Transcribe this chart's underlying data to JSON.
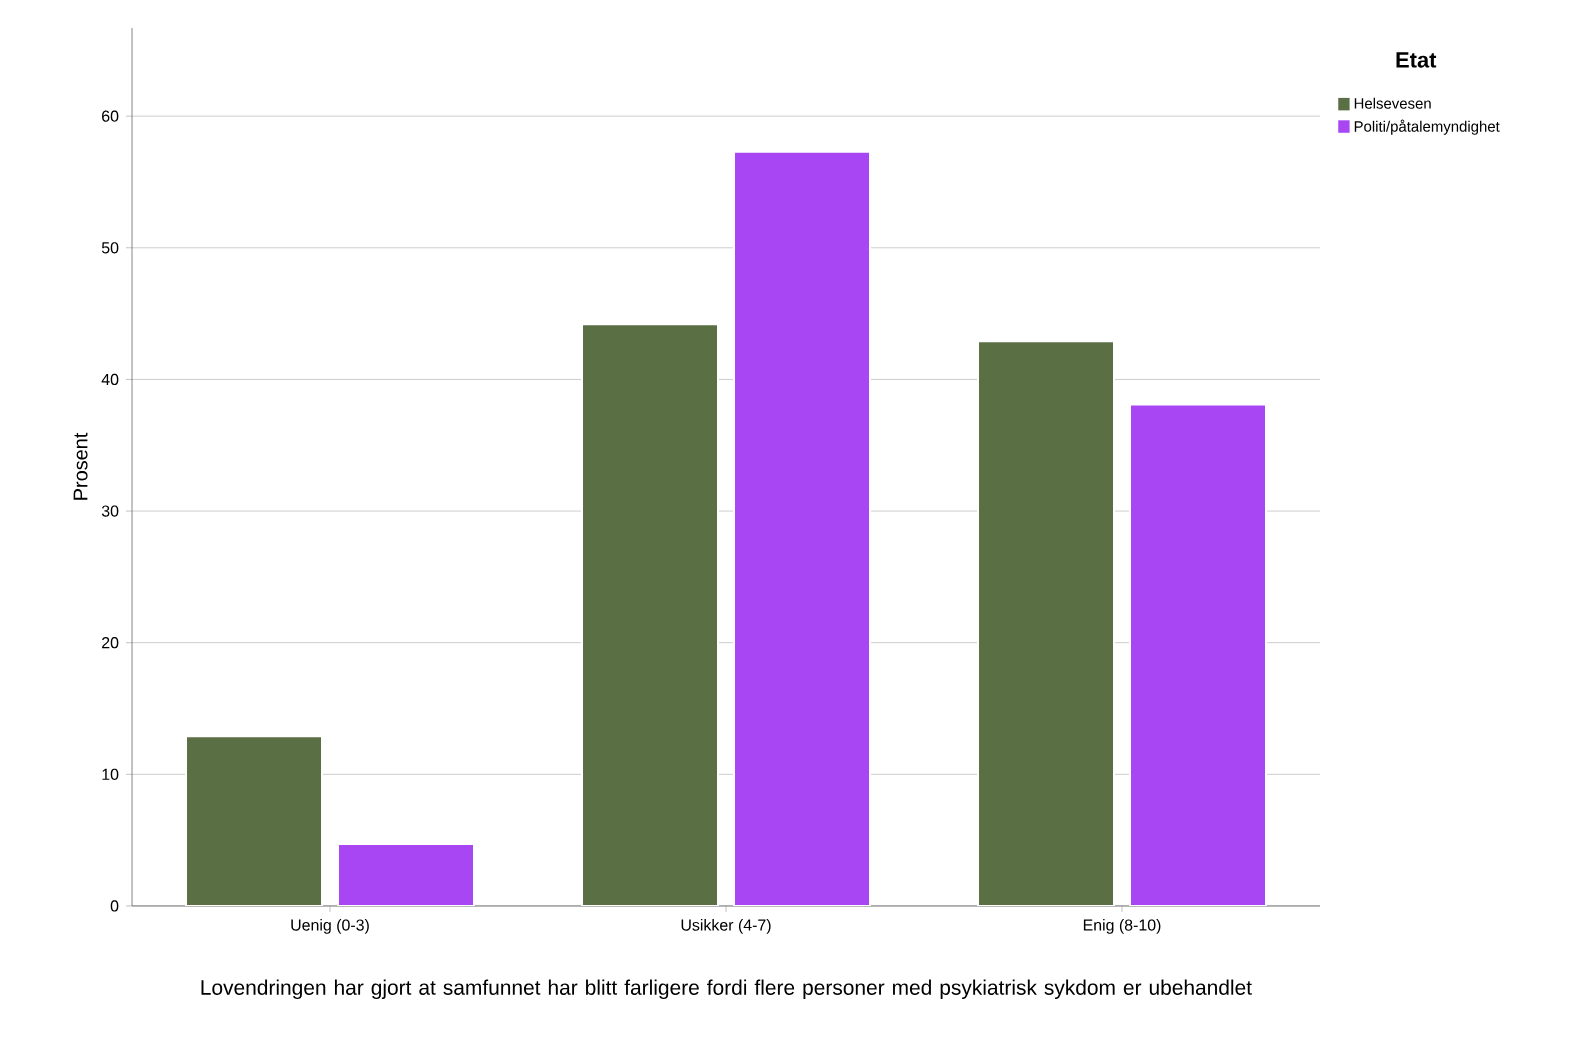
{
  "chart_data": {
    "type": "bar",
    "xlabel": "Lovendringen har gjort at samfunnet har blitt farligere fordi flere personer med psykiatrisk sykdom er ubehandlet",
    "ylabel": "Prosent",
    "legend_title": "Etat",
    "categories": [
      "Uenig (0-3)",
      "Usikker (4-7)",
      "Enig (8-10)"
    ],
    "series": [
      {
        "name": "Helsevesen",
        "color": "#5b6f45",
        "values": [
          12.9,
          44.2,
          42.9
        ]
      },
      {
        "name": "Politi/påtalemyndighet",
        "color": "#a946f3",
        "values": [
          4.7,
          57.3,
          38.1
        ]
      }
    ],
    "ylim": [
      0,
      66.7
    ],
    "yticks": [
      0,
      10,
      20,
      30,
      40,
      50,
      60
    ],
    "grid": "y",
    "legend": "top right"
  }
}
